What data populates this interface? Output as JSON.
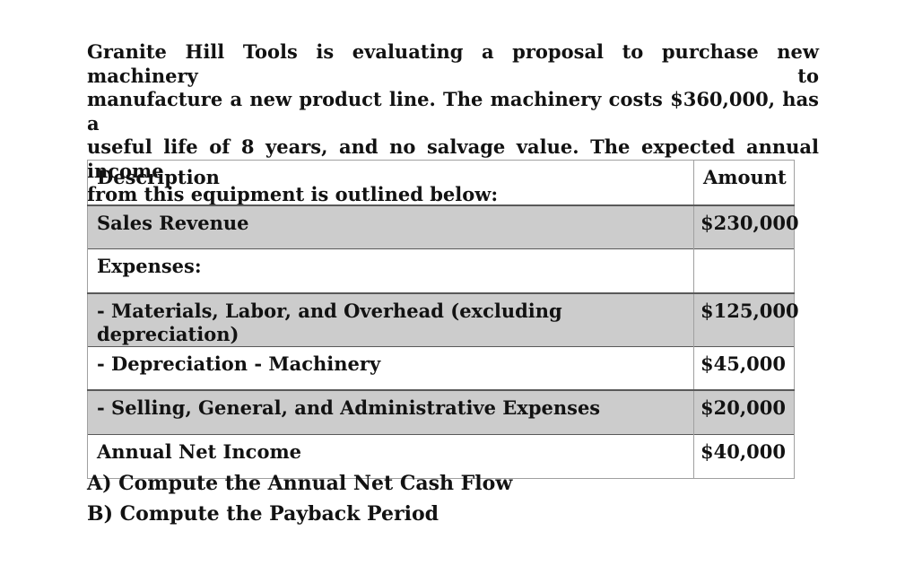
{
  "intro": {
    "lines": [
      "Granite Hill Tools is evaluating a proposal to purchase new machinery to",
      "manufacture a new product line. The machinery costs $360,000, has a",
      "useful life of 8 years, and no salvage value. The expected annual income",
      "from this equipment is outlined below:"
    ],
    "full_text": "Granite Hill Tools is evaluating a proposal to purchase new machinery to manufacture a new product line. The machinery costs $360,000, has a useful life of 8 years, and no salvage value. The expected annual income from this equipment is outlined below:"
  },
  "table": {
    "columns": [
      "Description",
      "Amount"
    ],
    "rows": [
      {
        "description": "Sales Revenue",
        "amount": "$230,000",
        "shaded": true
      },
      {
        "description": "Expenses:",
        "amount": "",
        "shaded": false
      },
      {
        "description": "- Materials, Labor, and Overhead (excluding depreciation)",
        "amount": "$125,000",
        "shaded": true
      },
      {
        "description": "- Depreciation - Machinery",
        "amount": "$45,000",
        "shaded": false
      },
      {
        "description": "- Selling, General, and Administrative Expenses",
        "amount": "$20,000",
        "shaded": true
      },
      {
        "description": "Annual Net Income",
        "amount": "$40,000",
        "shaded": false
      }
    ],
    "colors": {
      "shaded_row": "#cccccc",
      "border_dark": "#595959",
      "border_light": "#a0a0a0",
      "text": "#121212",
      "background": "#ffffff"
    }
  },
  "questions": [
    "A) Compute the Annual Net Cash Flow",
    "B) Compute the Payback Period"
  ]
}
